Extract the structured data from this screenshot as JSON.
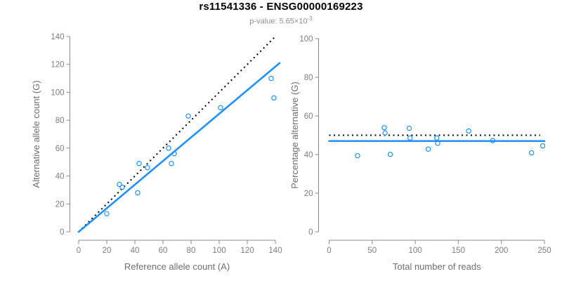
{
  "header": {
    "title": "rs11541336 - ENSG00000169223",
    "pvalue_prefix": "p-value: 5.65×10",
    "pvalue_exponent": "-3"
  },
  "colors": {
    "fit_line": "#1e90ff",
    "point_stroke": "#1e90ff",
    "reference_line": "#000000",
    "axis": "#8a8a8a",
    "tick_label": "#7d7d7d",
    "axis_title": "#6e6e6e"
  },
  "chart_data": [
    {
      "type": "scatter",
      "panel": "left",
      "xlabel": "Reference allele count (A)",
      "ylabel": "Alternative allele count (G)",
      "xlim": [
        0,
        140
      ],
      "ylim": [
        0,
        140
      ],
      "xticks": [
        0,
        20,
        40,
        60,
        80,
        100,
        120,
        140
      ],
      "yticks": [
        0,
        20,
        40,
        60,
        80,
        100,
        120,
        140
      ],
      "grid": false,
      "points": [
        [
          20,
          13
        ],
        [
          29,
          34
        ],
        [
          31,
          32
        ],
        [
          42,
          28
        ],
        [
          43,
          49
        ],
        [
          49,
          46
        ],
        [
          64,
          60
        ],
        [
          68,
          56
        ],
        [
          66,
          49
        ],
        [
          78,
          83
        ],
        [
          101,
          89
        ],
        [
          137,
          110
        ],
        [
          139,
          96
        ]
      ],
      "fit_line": {
        "x1": 0,
        "y1": 0,
        "x2": 143,
        "y2": 121
      },
      "reference_line": {
        "x1": 0,
        "y1": 0,
        "x2": 140,
        "y2": 140,
        "style": "dotted"
      }
    },
    {
      "type": "scatter",
      "panel": "right",
      "xlabel": "Total number of reads",
      "ylabel": "Percentage alternative (G)",
      "xlim": [
        0,
        250
      ],
      "ylim": [
        0,
        100
      ],
      "xticks": [
        0,
        50,
        100,
        150,
        200,
        250
      ],
      "yticks": [
        0,
        20,
        40,
        60,
        80,
        100
      ],
      "grid": false,
      "points": [
        [
          33,
          39.4
        ],
        [
          64,
          53.9
        ],
        [
          65,
          51.2
        ],
        [
          71,
          40.1
        ],
        [
          93,
          53.6
        ],
        [
          94,
          48.6
        ],
        [
          115,
          42.8
        ],
        [
          125,
          48.6
        ],
        [
          126,
          45.8
        ],
        [
          162,
          52.2
        ],
        [
          190,
          47.2
        ],
        [
          235,
          40.9
        ],
        [
          248,
          44.5
        ]
      ],
      "fit_line": {
        "x1": 0,
        "y1": 47,
        "x2": 250,
        "y2": 47
      },
      "reference_line": {
        "x1": 0,
        "y1": 50,
        "x2": 245,
        "y2": 50,
        "style": "dotted"
      }
    }
  ]
}
